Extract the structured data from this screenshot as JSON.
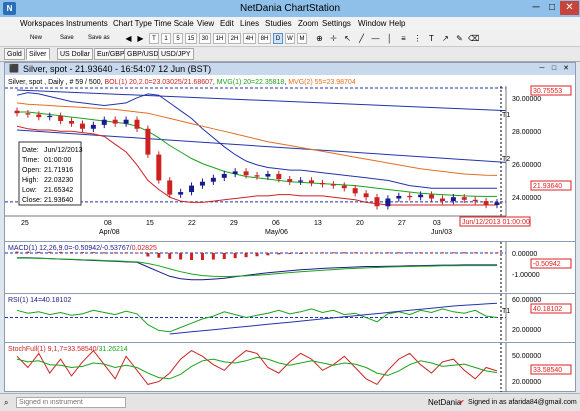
{
  "window": {
    "title": "NetDania ChartStation",
    "app_icon": "N",
    "min": "─",
    "max": "□",
    "close": "✕"
  },
  "menu": [
    "Workspaces",
    "Instruments",
    "Chart Type",
    "Time Scale",
    "View",
    "Edit",
    "Lines",
    "Studies",
    "Zoom",
    "Settings",
    "Window",
    "Help"
  ],
  "toolbar": {
    "new_label": "New",
    "save_label": "Save",
    "save_as_label": "Save as",
    "timeframes": [
      "T",
      "1",
      "5",
      "15",
      "30",
      "1H",
      "2H",
      "4H",
      "8H",
      "D",
      "W",
      "M"
    ],
    "active_timeframe": "D",
    "tools": [
      "crosshair-icon",
      "cursor-icon",
      "line-icon",
      "vertical-line-icon",
      "fibonacci-icon",
      "text-icon"
    ]
  },
  "tabs": [
    "Gold",
    "Silver",
    "US Dollar",
    "Eur/GBP",
    "GBP/USD",
    "USD/JPY"
  ],
  "active_tab": "Silver",
  "chart_window": {
    "title": "Silver, spot - 21.93640 - 16:54:07  12 Jun (BST)"
  },
  "price_panel": {
    "header": "Silver, spot , Daily , # 59 / 500, BOL(1) 20,2.0=23.03025/21.68607, MVG(1) 20=22.35818, MVG(2) 55=23.98704",
    "header_parts": [
      {
        "text": "Silver, spot , Daily , # 59 / 500, ",
        "color": "#000000"
      },
      {
        "text": "BOL(1) 20,2.0=23.03025/21.68607",
        "color": "#cc2222"
      },
      {
        "text": ", ",
        "color": "#000000"
      },
      {
        "text": "MVG(1) 20=22.35818",
        "color": "#1aa31a"
      },
      {
        "text": ", ",
        "color": "#000000"
      },
      {
        "text": "MVG(2) 55=23.98704",
        "color": "#e07020"
      }
    ],
    "y_ticks": [
      "30.00000",
      "28.00000",
      "26.00000",
      "24.00000",
      "22.00000"
    ],
    "top_price_label": "30.75553",
    "current_price_label": "21.93640",
    "date_marker": "Jun/12/2013 01:00:00",
    "x_ticks": [
      "25",
      "08",
      "15",
      "22",
      "29",
      "06",
      "13",
      "20",
      "27",
      "03",
      "10"
    ],
    "x_months": [
      "Apr/08",
      "May/06",
      "Jun/03"
    ],
    "line_labels": [
      "T1",
      "T2"
    ],
    "info_box": [
      {
        "label": "Date:",
        "value": "Jun/12/2013"
      },
      {
        "label": "Time:",
        "value": "01:00:00"
      },
      {
        "label": "Open:",
        "value": "21.71916"
      },
      {
        "label": "High:",
        "value": "22.03230"
      },
      {
        "label": "Low:",
        "value": "21.65342"
      },
      {
        "label": "Close:",
        "value": "21.93640"
      }
    ]
  },
  "macd_panel": {
    "header_parts": [
      {
        "text": "MACD(1) 12,26,9.0=-0.50942/-0.53767/",
        "color": "#1a1a8c"
      },
      {
        "text": "0.02825",
        "color": "#cc2222"
      }
    ],
    "y_ticks": [
      "0.00000",
      "-1.00000"
    ],
    "current_label": "-0.50942"
  },
  "rsi_panel": {
    "header": "RSI(1) 14=40.18102",
    "y_ticks": [
      "60.00000",
      "40.00000",
      "20.00000"
    ],
    "current_label": "40.18102",
    "line_label": "T1"
  },
  "stoch_panel": {
    "header_parts": [
      {
        "text": "StochFull(1) 9,1,7=33.58540/",
        "color": "#cc2222"
      },
      {
        "text": "31.26214",
        "color": "#1aa31a"
      }
    ],
    "y_ticks": [
      "50.00000",
      "20.00000"
    ],
    "current_label": "33.58540"
  },
  "status": {
    "signin_placeholder": "Signed in instrument",
    "brand": "NetDania",
    "signed_in_mark": "✔",
    "user": "Signed in as afarida84@gmail.com"
  },
  "chart_data": [
    {
      "type": "candlestick",
      "title": "Silver, spot , Daily",
      "x_range": [
        "Mar/25/2013",
        "Jun/12/2013"
      ],
      "ylim": [
        21.0,
        30.75553
      ],
      "current_close": 21.9364,
      "candles_approx": [
        {
          "o": 29.0,
          "c": 28.8
        },
        {
          "o": 28.8,
          "c": 28.7
        },
        {
          "o": 28.7,
          "c": 28.5
        },
        {
          "o": 28.5,
          "c": 28.6
        },
        {
          "o": 28.6,
          "c": 28.2
        },
        {
          "o": 28.2,
          "c": 28.0
        },
        {
          "o": 28.0,
          "c": 27.6
        },
        {
          "o": 27.6,
          "c": 27.9
        },
        {
          "o": 27.9,
          "c": 28.3
        },
        {
          "o": 28.3,
          "c": 28.0
        },
        {
          "o": 28.0,
          "c": 28.3
        },
        {
          "o": 28.3,
          "c": 27.6
        },
        {
          "o": 27.6,
          "c": 25.6
        },
        {
          "o": 25.6,
          "c": 23.6
        },
        {
          "o": 23.6,
          "c": 22.5
        },
        {
          "o": 22.5,
          "c": 22.7
        },
        {
          "o": 22.7,
          "c": 23.2
        },
        {
          "o": 23.2,
          "c": 23.5
        },
        {
          "o": 23.5,
          "c": 23.8
        },
        {
          "o": 23.8,
          "c": 24.1
        },
        {
          "o": 24.1,
          "c": 24.3
        },
        {
          "o": 24.3,
          "c": 24.0
        },
        {
          "o": 24.0,
          "c": 23.9
        },
        {
          "o": 23.9,
          "c": 24.1
        },
        {
          "o": 24.1,
          "c": 23.7
        },
        {
          "o": 23.7,
          "c": 23.5
        },
        {
          "o": 23.5,
          "c": 23.6
        },
        {
          "o": 23.6,
          "c": 23.4
        },
        {
          "o": 23.4,
          "c": 23.3
        },
        {
          "o": 23.3,
          "c": 23.2
        },
        {
          "o": 23.2,
          "c": 23.0
        },
        {
          "o": 23.0,
          "c": 22.6
        },
        {
          "o": 22.6,
          "c": 22.3
        },
        {
          "o": 22.3,
          "c": 21.6
        },
        {
          "o": 21.6,
          "c": 22.2
        },
        {
          "o": 22.2,
          "c": 22.4
        },
        {
          "o": 22.4,
          "c": 22.3
        },
        {
          "o": 22.3,
          "c": 22.5
        },
        {
          "o": 22.5,
          "c": 22.2
        },
        {
          "o": 22.2,
          "c": 22.0
        },
        {
          "o": 22.0,
          "c": 22.3
        },
        {
          "o": 22.3,
          "c": 22.1
        },
        {
          "o": 22.1,
          "c": 22.0
        },
        {
          "o": 22.0,
          "c": 21.7
        },
        {
          "o": 21.7,
          "c": 21.9
        }
      ],
      "series": [
        {
          "name": "BOL(1) upper",
          "color": "#2233aa",
          "values": [
            30.2,
            30.4,
            30.3,
            30.1,
            29.9,
            29.7,
            29.6,
            29.5,
            29.4,
            29.5,
            29.6,
            30.0,
            30.3,
            30.2,
            29.6,
            29.0,
            28.4,
            27.6,
            26.9,
            26.2,
            25.6,
            25.1,
            24.8,
            24.6,
            24.5,
            24.4,
            24.4,
            24.3,
            24.2,
            24.1,
            24.0,
            23.9,
            23.8,
            23.7,
            23.6,
            23.4,
            23.2,
            23.1,
            23.0,
            23.0,
            23.0,
            23.0,
            23.0,
            23.0,
            23.0
          ]
        },
        {
          "name": "BOL(1) lower",
          "color": "#cc2222",
          "values": [
            27.8,
            27.6,
            27.5,
            27.5,
            27.4,
            27.4,
            27.3,
            27.2,
            27.0,
            26.4,
            25.8,
            24.8,
            23.6,
            22.9,
            22.3,
            22.0,
            21.9,
            21.9,
            22.0,
            22.1,
            22.2,
            22.3,
            22.4,
            22.4,
            22.5,
            22.5,
            22.4,
            22.4,
            22.4,
            22.3,
            22.2,
            22.1,
            21.9,
            21.8,
            21.7,
            21.7,
            21.7,
            21.7,
            21.7,
            21.7,
            21.7,
            21.7,
            21.7,
            21.7,
            21.7
          ]
        },
        {
          "name": "MVG(1) 20",
          "color": "#1aa31a",
          "values": [
            28.9,
            28.9,
            28.8,
            28.7,
            28.6,
            28.5,
            28.4,
            28.3,
            28.2,
            28.1,
            28.0,
            27.8,
            27.4,
            26.9,
            26.3,
            25.8,
            25.3,
            24.9,
            24.6,
            24.3,
            24.1,
            23.9,
            23.8,
            23.7,
            23.6,
            23.5,
            23.45,
            23.4,
            23.35,
            23.3,
            23.25,
            23.2,
            23.1,
            23.0,
            22.9,
            22.8,
            22.7,
            22.6,
            22.55,
            22.5,
            22.45,
            22.4,
            22.38,
            22.36,
            22.36
          ]
        },
        {
          "name": "MVG(2) 55",
          "color": "#e07020",
          "values": [
            29.6,
            29.5,
            29.45,
            29.4,
            29.35,
            29.3,
            29.25,
            29.2,
            29.15,
            29.1,
            29.0,
            28.9,
            28.8,
            28.6,
            28.4,
            28.2,
            28.0,
            27.8,
            27.6,
            27.4,
            27.2,
            27.0,
            26.8,
            26.6,
            26.45,
            26.3,
            26.15,
            26.0,
            25.85,
            25.7,
            25.55,
            25.4,
            25.25,
            25.1,
            24.95,
            24.8,
            24.65,
            24.5,
            24.4,
            24.3,
            24.2,
            24.1,
            24.05,
            24.0,
            23.99
          ]
        }
      ]
    },
    {
      "type": "bar",
      "title": "MACD(1) 12,26,9.0",
      "ylim": [
        -1.5,
        0.3
      ],
      "histogram": [
        0.06,
        0.06,
        0.05,
        0.05,
        0.05,
        0.04,
        0.04,
        0.04,
        0.03,
        0.03,
        0.03,
        0.02,
        -0.15,
        -0.2,
        -0.25,
        -0.28,
        -0.3,
        -0.3,
        -0.28,
        -0.26,
        -0.22,
        -0.18,
        -0.14,
        -0.1,
        -0.06,
        -0.03,
        0.0,
        0.02,
        0.03,
        0.03,
        0.03,
        0.03,
        0.02,
        0.03,
        0.03,
        0.03,
        0.03,
        0.03,
        0.03,
        0.03,
        0.03,
        0.03,
        0.03,
        0.03,
        0.03
      ],
      "series": [
        {
          "name": "MACD",
          "color": "#1a1a8c",
          "values": [
            -0.2,
            -0.2,
            -0.22,
            -0.24,
            -0.26,
            -0.28,
            -0.3,
            -0.32,
            -0.34,
            -0.36,
            -0.38,
            -0.4,
            -0.6,
            -0.8,
            -1.0,
            -1.1,
            -1.15,
            -1.15,
            -1.12,
            -1.08,
            -1.02,
            -0.96,
            -0.9,
            -0.85,
            -0.8,
            -0.76,
            -0.72,
            -0.69,
            -0.66,
            -0.64,
            -0.62,
            -0.6,
            -0.58,
            -0.58,
            -0.57,
            -0.56,
            -0.55,
            -0.54,
            -0.53,
            -0.52,
            -0.52,
            -0.51,
            -0.51,
            -0.51,
            -0.51
          ]
        },
        {
          "name": "Signal",
          "color": "#1aa31a",
          "values": [
            -0.22,
            -0.22,
            -0.23,
            -0.24,
            -0.26,
            -0.27,
            -0.29,
            -0.3,
            -0.32,
            -0.34,
            -0.36,
            -0.38,
            -0.45,
            -0.55,
            -0.68,
            -0.8,
            -0.9,
            -0.97,
            -1.0,
            -1.01,
            -1.0,
            -0.98,
            -0.95,
            -0.92,
            -0.88,
            -0.84,
            -0.8,
            -0.77,
            -0.74,
            -0.71,
            -0.68,
            -0.66,
            -0.64,
            -0.62,
            -0.6,
            -0.59,
            -0.58,
            -0.57,
            -0.56,
            -0.55,
            -0.55,
            -0.54,
            -0.54,
            -0.54,
            -0.54
          ]
        }
      ]
    },
    {
      "type": "line",
      "title": "RSI(1) 14",
      "ylim": [
        10,
        70
      ],
      "series": [
        {
          "name": "RSI",
          "color": "#1aa31a",
          "values": [
            50,
            46,
            48,
            44,
            47,
            43,
            45,
            50,
            47,
            44,
            49,
            45,
            30,
            22,
            20,
            26,
            32,
            38,
            42,
            48,
            44,
            40,
            43,
            46,
            50,
            45,
            48,
            52,
            47,
            50,
            44,
            46,
            40,
            34,
            45,
            48,
            44,
            50,
            47,
            52,
            48,
            46,
            50,
            42,
            40
          ]
        },
        {
          "name": "Trend",
          "color": "#2233aa",
          "values": [
            null,
            null,
            null,
            null,
            null,
            null,
            null,
            null,
            null,
            null,
            null,
            null,
            null,
            null,
            17,
            18.5,
            20,
            21.5,
            23,
            24.5,
            26,
            27.5,
            29,
            30.5,
            32,
            33.5,
            35,
            36.5,
            38,
            39.5,
            41,
            42.5,
            44,
            45.5,
            47,
            48.5,
            50,
            51.5,
            53,
            54.5,
            56,
            57,
            58,
            59,
            60
          ]
        }
      ]
    },
    {
      "type": "line",
      "title": "StochFull(1) 9,1,7",
      "ylim": [
        0,
        80
      ],
      "series": [
        {
          "name": "%K",
          "color": "#cc2222",
          "values": [
            60,
            40,
            65,
            30,
            55,
            25,
            50,
            70,
            45,
            20,
            60,
            35,
            10,
            15,
            30,
            55,
            70,
            60,
            45,
            35,
            55,
            70,
            65,
            40,
            30,
            50,
            65,
            55,
            35,
            45,
            60,
            40,
            20,
            10,
            35,
            55,
            65,
            45,
            30,
            50,
            55,
            35,
            20,
            40,
            34
          ]
        },
        {
          "name": "%D",
          "color": "#1aa31a",
          "values": [
            55,
            50,
            52,
            45,
            44,
            40,
            42,
            48,
            46,
            40,
            44,
            40,
            30,
            22,
            20,
            28,
            42,
            52,
            55,
            50,
            48,
            52,
            58,
            55,
            48,
            44,
            48,
            52,
            48,
            44,
            48,
            46,
            40,
            30,
            26,
            34,
            45,
            52,
            48,
            42,
            44,
            46,
            40,
            34,
            31
          ]
        }
      ]
    }
  ]
}
